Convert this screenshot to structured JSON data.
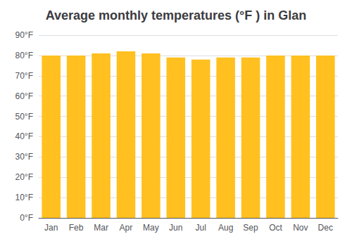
{
  "chart_data": {
    "type": "bar",
    "title": "Average monthly temperatures (°F ) in Glan",
    "categories": [
      "Jan",
      "Feb",
      "Mar",
      "Apr",
      "May",
      "Jun",
      "Jul",
      "Aug",
      "Sep",
      "Oct",
      "Nov",
      "Dec"
    ],
    "values": [
      80,
      80,
      81,
      82,
      81,
      79,
      78,
      79,
      79,
      80,
      80,
      80
    ],
    "color": "#FFC020",
    "ylim": [
      0,
      90
    ],
    "yticks": [
      {
        "value": 0,
        "label": "0°F"
      },
      {
        "value": 10,
        "label": "10°F"
      },
      {
        "value": 20,
        "label": "20°F"
      },
      {
        "value": 30,
        "label": "30°F"
      },
      {
        "value": 40,
        "label": "40°F"
      },
      {
        "value": 50,
        "label": "50°F"
      },
      {
        "value": 60,
        "label": "60°F"
      },
      {
        "value": 70,
        "label": "70°F"
      },
      {
        "value": 80,
        "label": "80°F"
      },
      {
        "value": 90,
        "label": "90°F"
      }
    ],
    "grid": true
  }
}
